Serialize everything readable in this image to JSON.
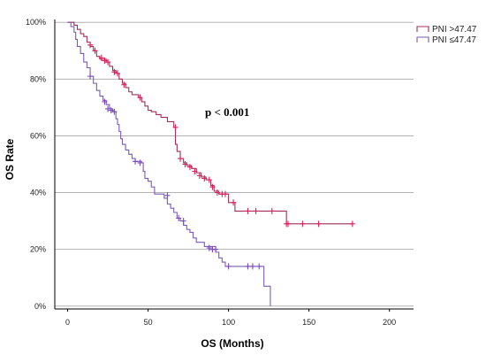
{
  "chart_data": {
    "type": "line",
    "xlabel": "OS (Months)",
    "ylabel": "OS Rate",
    "xlim": [
      -8,
      215
    ],
    "ylim": [
      -0.01,
      1.01
    ],
    "x_ticks": [
      0,
      50,
      100,
      150,
      200
    ],
    "y_ticks": [
      0,
      0.2,
      0.4,
      0.6,
      0.8,
      1.0
    ],
    "y_tick_labels": [
      "0%",
      "20%",
      "40%",
      "60%",
      "80%",
      "100%"
    ],
    "grid": "horizontal",
    "legend_position": "top-right",
    "annotation": "p < 0.001",
    "series": [
      {
        "name": "PNI >47.47",
        "color": "#a0305a",
        "censor_color": "#dd1f5a",
        "steps": [
          [
            0,
            1.0
          ],
          [
            4,
            0.99
          ],
          [
            6,
            0.975
          ],
          [
            8,
            0.96
          ],
          [
            10,
            0.95
          ],
          [
            12,
            0.93
          ],
          [
            14,
            0.915
          ],
          [
            16,
            0.9
          ],
          [
            18,
            0.88
          ],
          [
            20,
            0.87
          ],
          [
            24,
            0.86
          ],
          [
            26,
            0.845
          ],
          [
            28,
            0.83
          ],
          [
            30,
            0.82
          ],
          [
            32,
            0.8
          ],
          [
            34,
            0.785
          ],
          [
            36,
            0.77
          ],
          [
            38,
            0.755
          ],
          [
            40,
            0.745
          ],
          [
            44,
            0.735
          ],
          [
            46,
            0.72
          ],
          [
            48,
            0.705
          ],
          [
            50,
            0.69
          ],
          [
            52,
            0.685
          ],
          [
            55,
            0.675
          ],
          [
            58,
            0.665
          ],
          [
            62,
            0.65
          ],
          [
            66,
            0.63
          ],
          [
            67,
            0.57
          ],
          [
            68,
            0.545
          ],
          [
            70,
            0.52
          ],
          [
            72,
            0.505
          ],
          [
            74,
            0.495
          ],
          [
            77,
            0.485
          ],
          [
            80,
            0.47
          ],
          [
            83,
            0.455
          ],
          [
            86,
            0.445
          ],
          [
            89,
            0.425
          ],
          [
            91,
            0.405
          ],
          [
            94,
            0.395
          ],
          [
            100,
            0.365
          ],
          [
            104,
            0.335
          ],
          [
            136,
            0.29
          ],
          [
            177,
            0.29
          ]
        ],
        "censored": [
          [
            14,
            0.92
          ],
          [
            17,
            0.9
          ],
          [
            21,
            0.875
          ],
          [
            23,
            0.865
          ],
          [
            25,
            0.86
          ],
          [
            29,
            0.825
          ],
          [
            31,
            0.82
          ],
          [
            35,
            0.78
          ],
          [
            45,
            0.735
          ],
          [
            67,
            0.63
          ],
          [
            70,
            0.52
          ],
          [
            73,
            0.5
          ],
          [
            76,
            0.49
          ],
          [
            79,
            0.475
          ],
          [
            82,
            0.46
          ],
          [
            85,
            0.45
          ],
          [
            88,
            0.445
          ],
          [
            90,
            0.42
          ],
          [
            93,
            0.4
          ],
          [
            96,
            0.395
          ],
          [
            98,
            0.395
          ],
          [
            103,
            0.365
          ],
          [
            112,
            0.335
          ],
          [
            117,
            0.335
          ],
          [
            127,
            0.335
          ],
          [
            136,
            0.29
          ],
          [
            137,
            0.29
          ],
          [
            146,
            0.29
          ],
          [
            156,
            0.29
          ],
          [
            177,
            0.29
          ]
        ]
      },
      {
        "name": "PNI ≤47.47",
        "color": "#7b5cb3",
        "censor_color": "#7b48c0",
        "steps": [
          [
            0,
            1.0
          ],
          [
            2,
            0.985
          ],
          [
            4,
            0.965
          ],
          [
            5,
            0.94
          ],
          [
            6,
            0.915
          ],
          [
            8,
            0.89
          ],
          [
            10,
            0.86
          ],
          [
            12,
            0.84
          ],
          [
            14,
            0.81
          ],
          [
            16,
            0.785
          ],
          [
            18,
            0.76
          ],
          [
            20,
            0.74
          ],
          [
            22,
            0.725
          ],
          [
            24,
            0.71
          ],
          [
            26,
            0.695
          ],
          [
            28,
            0.685
          ],
          [
            30,
            0.66
          ],
          [
            31,
            0.64
          ],
          [
            32,
            0.615
          ],
          [
            33,
            0.59
          ],
          [
            34,
            0.57
          ],
          [
            36,
            0.55
          ],
          [
            38,
            0.535
          ],
          [
            40,
            0.52
          ],
          [
            42,
            0.51
          ],
          [
            46,
            0.505
          ],
          [
            47,
            0.475
          ],
          [
            48,
            0.45
          ],
          [
            50,
            0.44
          ],
          [
            52,
            0.42
          ],
          [
            54,
            0.395
          ],
          [
            60,
            0.38
          ],
          [
            62,
            0.36
          ],
          [
            64,
            0.345
          ],
          [
            66,
            0.33
          ],
          [
            68,
            0.31
          ],
          [
            70,
            0.3
          ],
          [
            72,
            0.285
          ],
          [
            74,
            0.27
          ],
          [
            76,
            0.26
          ],
          [
            78,
            0.24
          ],
          [
            80,
            0.225
          ],
          [
            85,
            0.21
          ],
          [
            92,
            0.19
          ],
          [
            94,
            0.17
          ],
          [
            96,
            0.155
          ],
          [
            98,
            0.14
          ],
          [
            122,
            0.07
          ],
          [
            126,
            0.0
          ]
        ],
        "censored": [
          [
            14,
            0.81
          ],
          [
            23,
            0.72
          ],
          [
            25,
            0.695
          ],
          [
            27,
            0.69
          ],
          [
            29,
            0.685
          ],
          [
            42,
            0.51
          ],
          [
            45,
            0.505
          ],
          [
            62,
            0.39
          ],
          [
            69,
            0.31
          ],
          [
            72,
            0.3
          ],
          [
            88,
            0.205
          ],
          [
            90,
            0.2
          ],
          [
            92,
            0.2
          ],
          [
            100,
            0.14
          ],
          [
            112,
            0.14
          ],
          [
            115,
            0.14
          ],
          [
            119,
            0.14
          ]
        ]
      }
    ]
  }
}
